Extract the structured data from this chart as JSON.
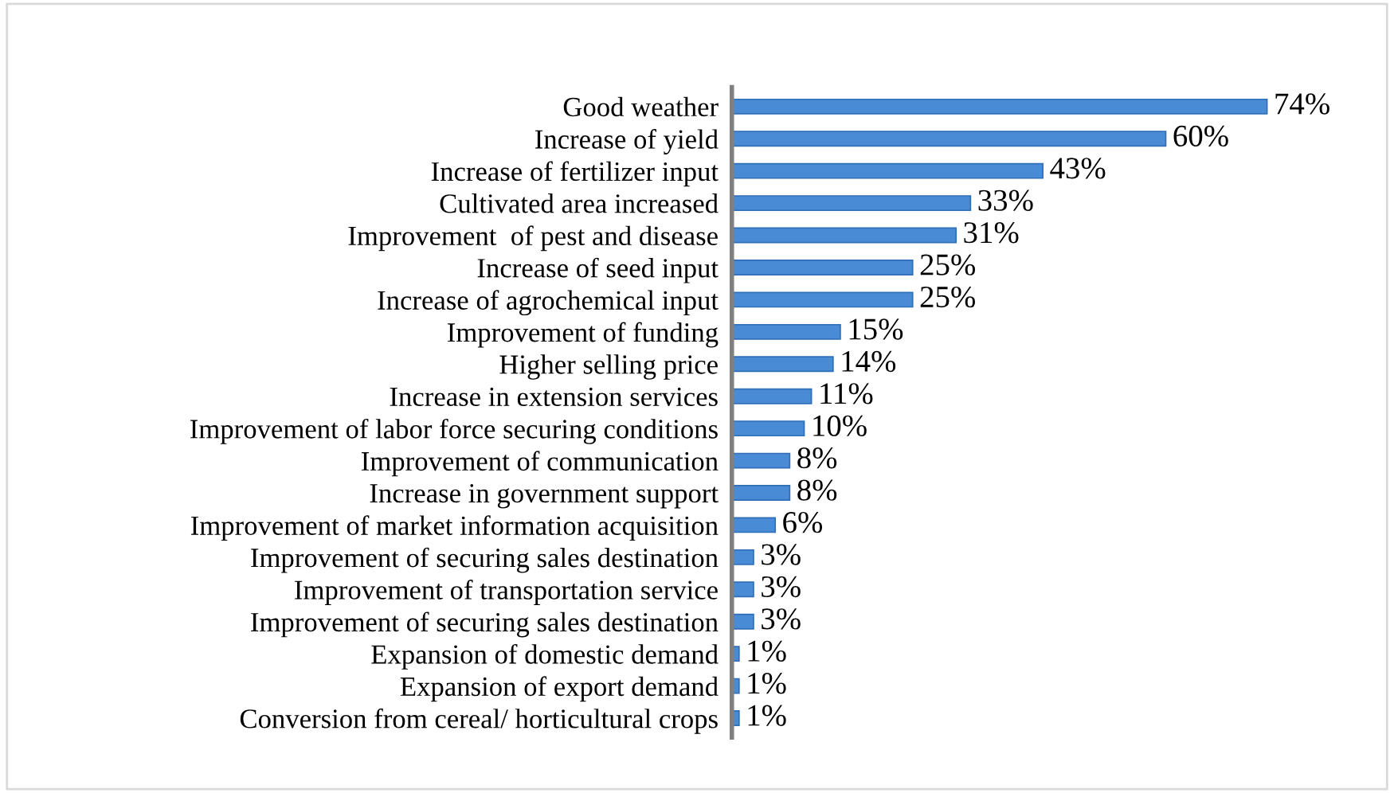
{
  "chart_data": {
    "type": "bar",
    "orientation": "horizontal",
    "categories": [
      "Good weather",
      "Increase of yield",
      "Increase of fertilizer input",
      "Cultivated area increased",
      "Improvement  of pest and disease",
      "Increase of seed input",
      "Increase of agrochemical input",
      "Improvement of funding",
      "Higher selling price",
      "Increase in extension services",
      "Improvement of labor force securing conditions",
      "Improvement of communication",
      "Increase in government support",
      "Improvement of market information acquisition",
      "Improvement of securing sales destination",
      "Improvement of transportation service",
      "Improvement of securing sales destination",
      "Expansion of domestic demand",
      "Expansion of export demand",
      "Conversion from cereal/ horticultural crops"
    ],
    "values": [
      74,
      60,
      43,
      33,
      31,
      25,
      25,
      15,
      14,
      11,
      10,
      8,
      8,
      6,
      3,
      3,
      3,
      1,
      1,
      1
    ],
    "value_labels": [
      "74%",
      "60%",
      "43%",
      "33%",
      "31%",
      "25%",
      "25%",
      "15%",
      "14%",
      "11%",
      "10%",
      "8%",
      "8%",
      "6%",
      "3%",
      "3%",
      "3%",
      "1%",
      "1%",
      "1%"
    ],
    "color": "#4a8bd6",
    "grid": false,
    "legend": false
  }
}
